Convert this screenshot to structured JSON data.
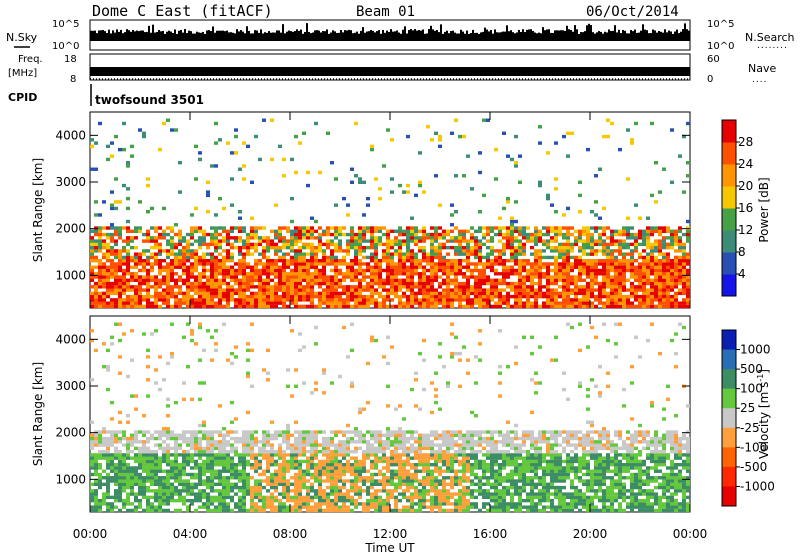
{
  "header": {
    "title_left": "Dome C East (fitACF)",
    "title_center": "Beam 01",
    "title_right": "06/Oct/2014"
  },
  "strip_panels": {
    "nsky": {
      "left_label": "N.Sky",
      "left_ticks": [
        "10^5",
        "10^0"
      ],
      "right_ticks": [
        "10^5",
        "10^0"
      ],
      "right_label": "N.Search",
      "right_marker": "........"
    },
    "freq": {
      "left_label_1": "Freq.",
      "left_label_2": "[MHz]",
      "left_ticks": [
        "18",
        "8"
      ],
      "right_ticks": [
        "60",
        "0"
      ],
      "right_label": "Nave",
      "right_marker": "...."
    },
    "cpid": {
      "label": "CPID",
      "value": "twofsound 3501"
    }
  },
  "chart_data": [
    {
      "type": "heatmap",
      "panel": "power",
      "ylabel": "Slant Range [km]",
      "y_ticks": [
        "1000",
        "2000",
        "3000",
        "4000"
      ],
      "ylim": [
        300,
        4500
      ],
      "colorbar_label": "Power [dB]",
      "colorbar_ticks": [
        "4",
        "8",
        "12",
        "16",
        "20",
        "24",
        "28"
      ],
      "colorbar_colors": [
        "#1414e6",
        "#2850b4",
        "#3c8c78",
        "#46a046",
        "#f5c800",
        "#ff9600",
        "#ff5000",
        "#e60000"
      ],
      "grid": false
    },
    {
      "type": "heatmap",
      "panel": "velocity",
      "ylabel": "Slant Range [km]",
      "y_ticks": [
        "1000",
        "2000",
        "3000",
        "4000"
      ],
      "ylim": [
        300,
        4500
      ],
      "colorbar_label": "Velocity [m s",
      "colorbar_label_sup": "-1",
      "colorbar_label_end": "]",
      "colorbar_ticks": [
        "1000",
        "500",
        "100",
        "25",
        "-25",
        "-100",
        "-500",
        "-1000"
      ],
      "colorbar_colors": [
        "#0a1eb4",
        "#286eb4",
        "#3c8c64",
        "#64c83c",
        "#c8c8c8",
        "#ffa03c",
        "#ff6400",
        "#ff2800",
        "#e60000"
      ],
      "grid": false
    }
  ],
  "x_axis": {
    "label": "Time UT",
    "ticks": [
      "00:00",
      "04:00",
      "08:00",
      "12:00",
      "16:00",
      "20:00",
      "00:00"
    ]
  }
}
